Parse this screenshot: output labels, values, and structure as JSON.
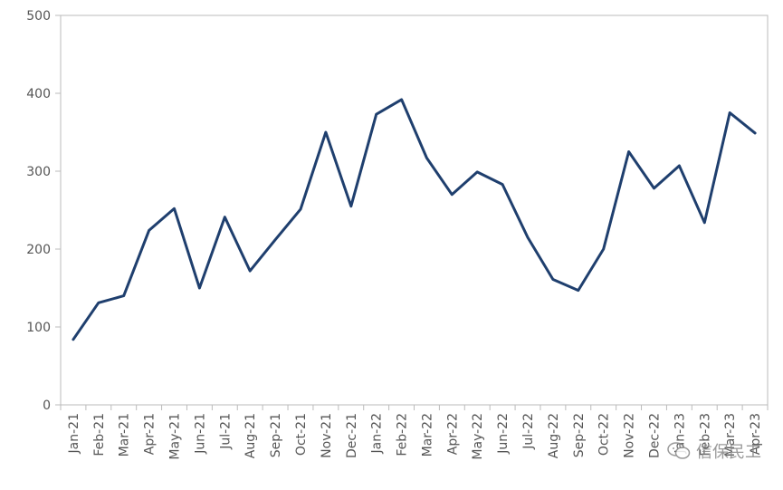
{
  "chart_data": {
    "type": "line",
    "title": "",
    "xlabel": "",
    "ylabel": "",
    "ylim": [
      0,
      500
    ],
    "yticks": [
      0,
      100,
      200,
      300,
      400,
      500
    ],
    "grid": false,
    "categories": [
      "Jan-21",
      "Feb-21",
      "Mar-21",
      "Apr-21",
      "May-21",
      "Jun-21",
      "Jul-21",
      "Aug-21",
      "Sep-21",
      "Oct-21",
      "Nov-21",
      "Dec-21",
      "Jan-22",
      "Feb-22",
      "Mar-22",
      "Apr-22",
      "May-22",
      "Jun-22",
      "Jul-22",
      "Aug-22",
      "Sep-22",
      "Oct-22",
      "Nov-22",
      "Dec-22",
      "Jan-23",
      "Feb-23",
      "Mar-23",
      "Apr-23"
    ],
    "series": [
      {
        "values": [
          84,
          131,
          140,
          224,
          252,
          150,
          241,
          172,
          212,
          251,
          350,
          255,
          373,
          392,
          317,
          270,
          299,
          283,
          215,
          161,
          147,
          200,
          325,
          278,
          307,
          234,
          375,
          349
        ]
      }
    ],
    "line_color": "#1f3f6e"
  },
  "watermark": {
    "text": "信保民工",
    "icon": "wechat-icon"
  }
}
